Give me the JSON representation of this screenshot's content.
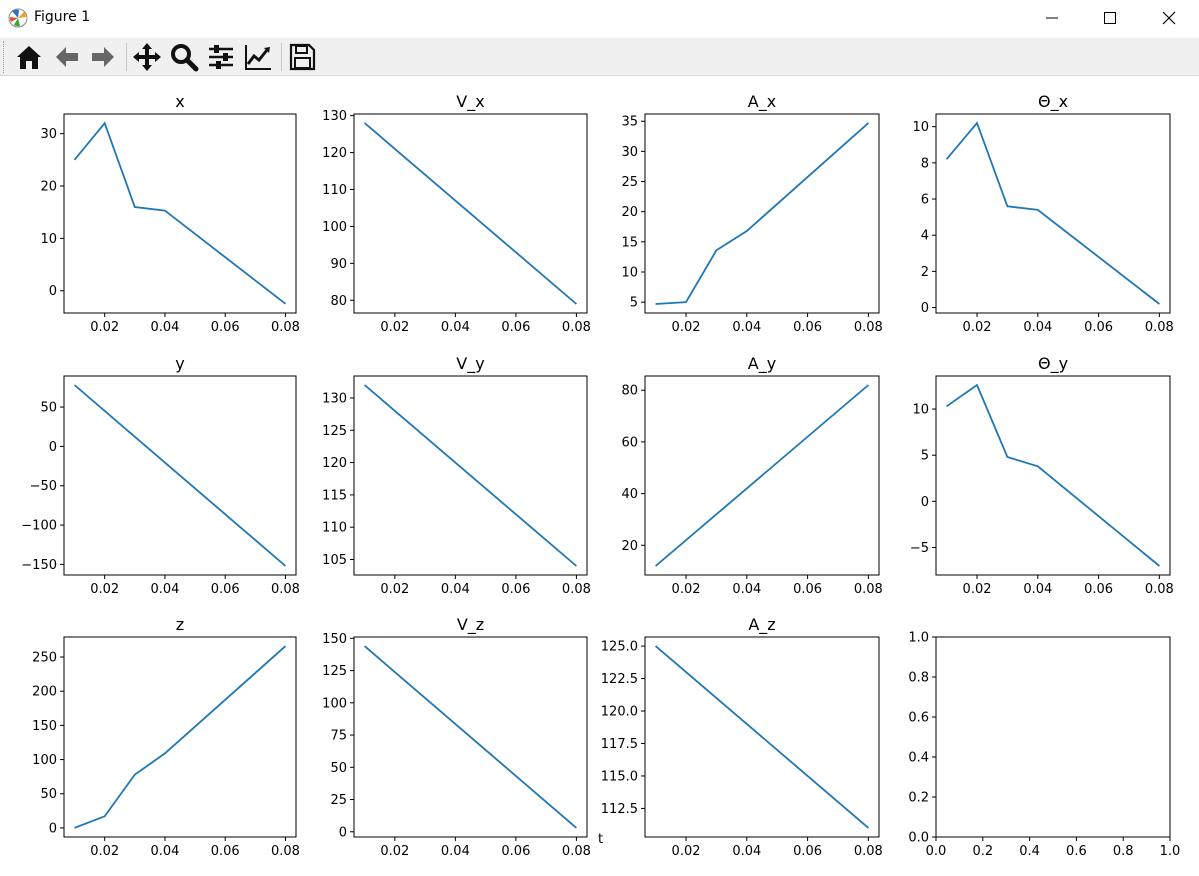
{
  "window": {
    "title": "Figure 1",
    "icon": "matplotlib-icon"
  },
  "window_controls": [
    {
      "name": "minimize-icon"
    },
    {
      "name": "maximize-icon"
    },
    {
      "name": "close-icon"
    }
  ],
  "toolbar": {
    "buttons": [
      {
        "name": "home-icon",
        "group": 0
      },
      {
        "name": "back-icon",
        "group": 0
      },
      {
        "name": "forward-icon",
        "group": 0
      },
      {
        "name": "pan-icon",
        "group": 1
      },
      {
        "name": "zoom-icon",
        "group": 1
      },
      {
        "name": "subplots-icon",
        "group": 1
      },
      {
        "name": "edit-axis-icon",
        "group": 1
      },
      {
        "name": "save-icon",
        "group": 2
      }
    ]
  },
  "colors": {
    "line": "#1f77b4",
    "toolbar_bg": "#f0f0f0"
  },
  "stray_text": "t",
  "chart_data": [
    {
      "type": "line",
      "title": "x",
      "x": [
        0.01,
        0.02,
        0.03,
        0.04,
        0.08
      ],
      "y": [
        25,
        32,
        16,
        15.3,
        -2.5
      ],
      "xlim": [
        0.0065,
        0.0835
      ],
      "ylim": [
        -4.25,
        33.75
      ],
      "xticks": [
        "0.02",
        "0.04",
        "0.06",
        "0.08"
      ],
      "yticks": [
        0,
        10,
        20,
        30
      ],
      "ytick_labels": [
        "0",
        "10",
        "20",
        "30"
      ]
    },
    {
      "type": "line",
      "title": "V_x",
      "x": [
        0.01,
        0.08
      ],
      "y": [
        128,
        79
      ],
      "xlim": [
        0.0065,
        0.0835
      ],
      "ylim": [
        76.55,
        130.45
      ],
      "xticks": [
        "0.02",
        "0.04",
        "0.06",
        "0.08"
      ],
      "yticks": [
        80,
        90,
        100,
        110,
        120,
        130
      ],
      "ytick_labels": [
        "80",
        "90",
        "100",
        "110",
        "120",
        "130"
      ]
    },
    {
      "type": "line",
      "title": "A_x",
      "x": [
        0.01,
        0.02,
        0.03,
        0.04,
        0.08
      ],
      "y": [
        4.7,
        5,
        13.6,
        16.8,
        34.7
      ],
      "xlim": [
        0.0065,
        0.0835
      ],
      "ylim": [
        3.2,
        36.2
      ],
      "xticks": [
        "0.02",
        "0.04",
        "0.06",
        "0.08"
      ],
      "yticks": [
        5,
        10,
        15,
        20,
        25,
        30,
        35
      ],
      "ytick_labels": [
        "5",
        "10",
        "15",
        "20",
        "25",
        "30",
        "35"
      ]
    },
    {
      "type": "line",
      "title": "Θ_x",
      "x": [
        0.01,
        0.02,
        0.03,
        0.04,
        0.08
      ],
      "y": [
        8.2,
        10.2,
        5.6,
        5.4,
        0.2
      ],
      "xlim": [
        0.0065,
        0.0835
      ],
      "ylim": [
        -0.3,
        10.7
      ],
      "xticks": [
        "0.02",
        "0.04",
        "0.06",
        "0.08"
      ],
      "yticks": [
        0,
        2,
        4,
        6,
        8,
        10
      ],
      "ytick_labels": [
        "0",
        "2",
        "4",
        "6",
        "8",
        "10"
      ]
    },
    {
      "type": "line",
      "title": "y",
      "x": [
        0.01,
        0.08
      ],
      "y": [
        78,
        -152
      ],
      "xlim": [
        0.0065,
        0.0835
      ],
      "ylim": [
        -163.5,
        89.5
      ],
      "xticks": [
        "0.02",
        "0.04",
        "0.06",
        "0.08"
      ],
      "yticks": [
        -150,
        -100,
        -50,
        0,
        50
      ],
      "ytick_labels": [
        "−150",
        "−100",
        "−50",
        "0",
        "50"
      ]
    },
    {
      "type": "line",
      "title": "V_y",
      "x": [
        0.01,
        0.08
      ],
      "y": [
        132,
        104
      ],
      "xlim": [
        0.0065,
        0.0835
      ],
      "ylim": [
        102.6,
        133.4
      ],
      "xticks": [
        "0.02",
        "0.04",
        "0.06",
        "0.08"
      ],
      "yticks": [
        105,
        110,
        115,
        120,
        125,
        130
      ],
      "ytick_labels": [
        "105",
        "110",
        "115",
        "120",
        "125",
        "130"
      ]
    },
    {
      "type": "line",
      "title": "A_y",
      "x": [
        0.01,
        0.08
      ],
      "y": [
        12,
        82
      ],
      "xlim": [
        0.0065,
        0.0835
      ],
      "ylim": [
        8.5,
        85.5
      ],
      "xticks": [
        "0.02",
        "0.04",
        "0.06",
        "0.08"
      ],
      "yticks": [
        20,
        40,
        60,
        80
      ],
      "ytick_labels": [
        "20",
        "40",
        "60",
        "80"
      ]
    },
    {
      "type": "line",
      "title": "Θ_y",
      "x": [
        0.01,
        0.02,
        0.03,
        0.04,
        0.08
      ],
      "y": [
        10.3,
        12.6,
        4.8,
        3.8,
        -7
      ],
      "xlim": [
        0.0065,
        0.0835
      ],
      "ylim": [
        -7.98,
        13.58
      ],
      "xticks": [
        "0.02",
        "0.04",
        "0.06",
        "0.08"
      ],
      "yticks": [
        -5,
        0,
        5,
        10
      ],
      "ytick_labels": [
        "−5",
        "0",
        "5",
        "10"
      ]
    },
    {
      "type": "line",
      "title": "z",
      "x": [
        0.01,
        0.02,
        0.03,
        0.04,
        0.08
      ],
      "y": [
        0,
        17,
        78,
        109,
        266
      ],
      "xlim": [
        0.0065,
        0.0835
      ],
      "ylim": [
        -13.3,
        279.3
      ],
      "xticks": [
        "0.02",
        "0.04",
        "0.06",
        "0.08"
      ],
      "yticks": [
        0,
        50,
        100,
        150,
        200,
        250
      ],
      "ytick_labels": [
        "0",
        "50",
        "100",
        "150",
        "200",
        "250"
      ]
    },
    {
      "type": "line",
      "title": "V_z",
      "x": [
        0.01,
        0.08
      ],
      "y": [
        144,
        3
      ],
      "xlim": [
        0.0065,
        0.0835
      ],
      "ylim": [
        -4.05,
        151.05
      ],
      "xticks": [
        "0.02",
        "0.04",
        "0.06",
        "0.08"
      ],
      "yticks": [
        0,
        25,
        50,
        75,
        100,
        125,
        150
      ],
      "ytick_labels": [
        "0",
        "25",
        "50",
        "75",
        "100",
        "125",
        "150"
      ]
    },
    {
      "type": "line",
      "title": "A_z",
      "x": [
        0.01,
        0.08
      ],
      "y": [
        125,
        111
      ],
      "xlim": [
        0.0065,
        0.0835
      ],
      "ylim": [
        110.3,
        125.7
      ],
      "xticks": [
        "0.02",
        "0.04",
        "0.06",
        "0.08"
      ],
      "yticks": [
        112.5,
        115,
        117.5,
        120,
        122.5,
        125
      ],
      "ytick_labels": [
        "112.5",
        "115.0",
        "117.5",
        "120.0",
        "122.5",
        "125.0"
      ]
    },
    {
      "type": "line",
      "title": "",
      "x": [],
      "y": [],
      "xlim": [
        0,
        1
      ],
      "ylim": [
        0,
        1
      ],
      "xticks": [
        "0.0",
        "0.2",
        "0.4",
        "0.6",
        "0.8",
        "1.0"
      ],
      "yticks": [
        0,
        0.2,
        0.4,
        0.6,
        0.8,
        1.0
      ],
      "ytick_labels": [
        "0.0",
        "0.2",
        "0.4",
        "0.6",
        "0.8",
        "1.0"
      ]
    }
  ]
}
